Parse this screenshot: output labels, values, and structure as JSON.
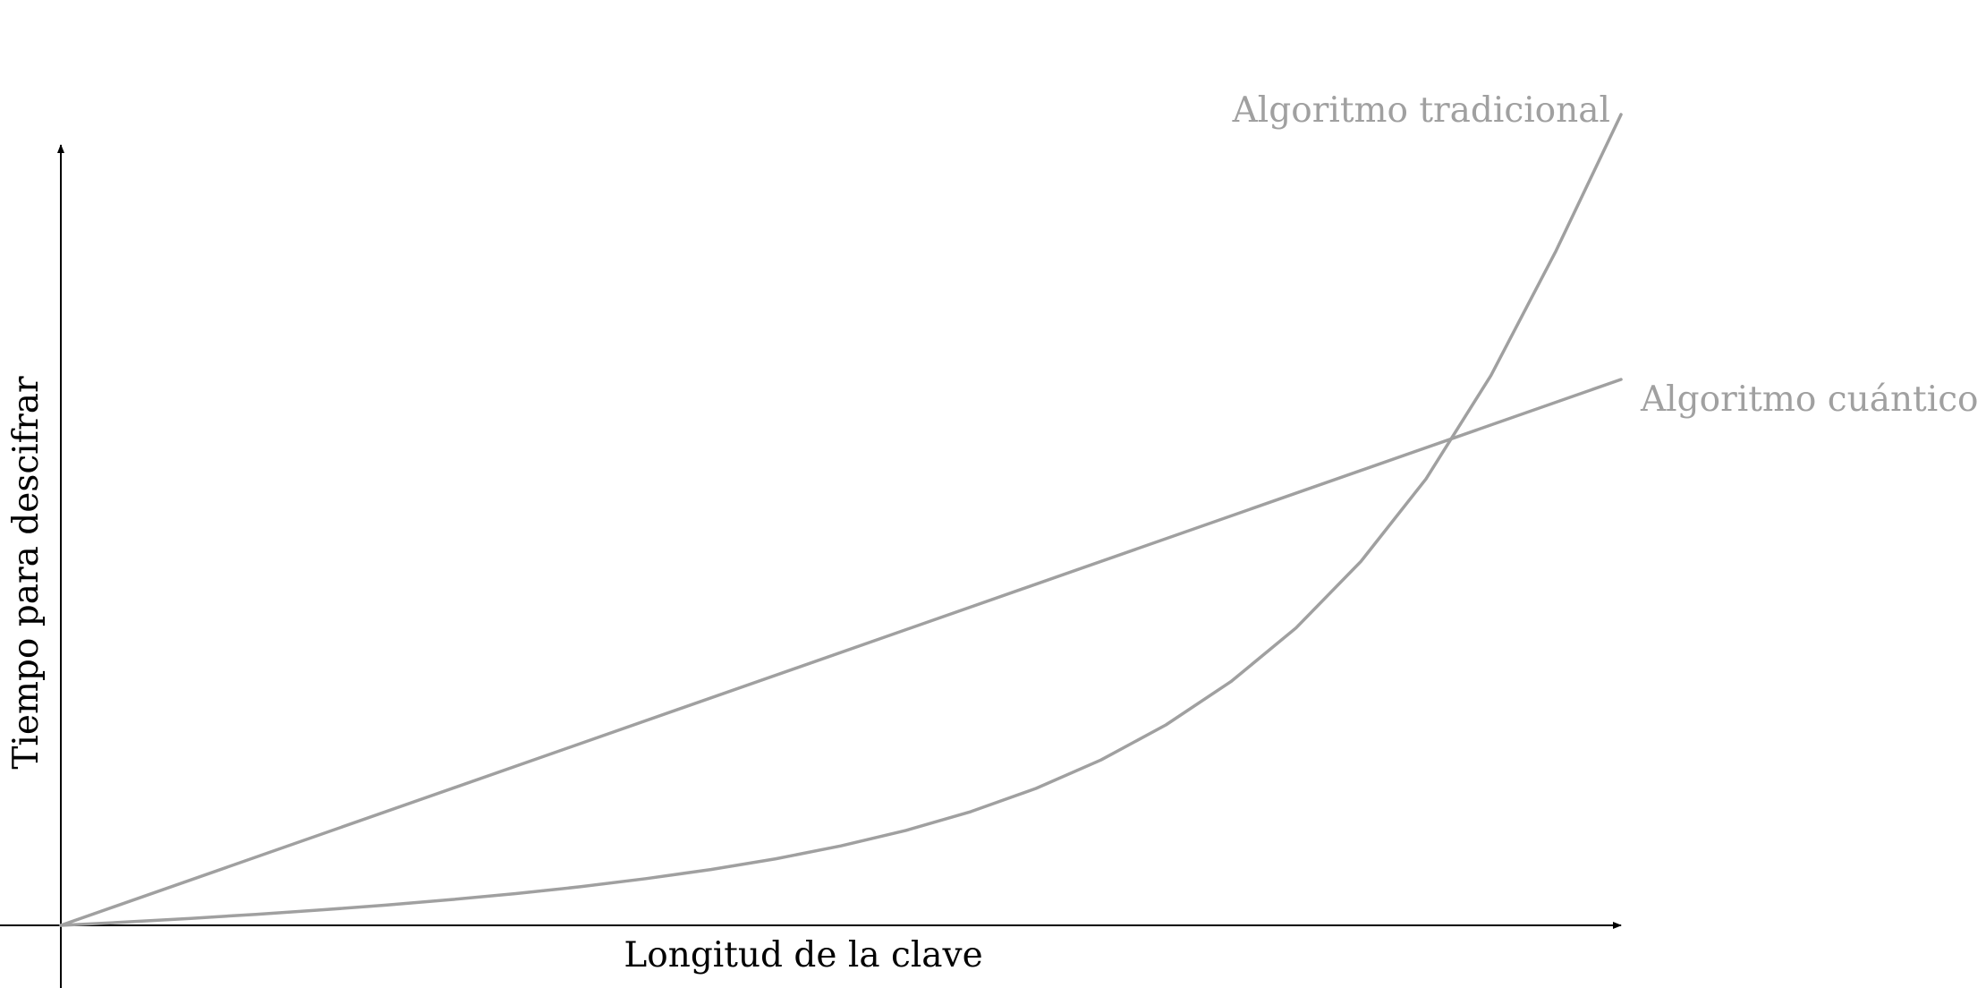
{
  "chart_data": {
    "type": "line",
    "xlabel": "Longitud de la clave",
    "ylabel": "Tiempo para descifrar",
    "xlim": [
      0,
      1
    ],
    "ylim": [
      0,
      1.2
    ],
    "grid": false,
    "ticks": false,
    "series_color": "#a0a0a0",
    "axis_color": "#000000",
    "series": [
      {
        "name": "Algoritmo cuántico",
        "x": [
          0,
          1
        ],
        "y": [
          0,
          0.8
        ]
      },
      {
        "name": "Algoritmo tradicional",
        "x": [
          0,
          0.04167,
          0.08333,
          0.125,
          0.16667,
          0.20833,
          0.25,
          0.29167,
          0.33333,
          0.375,
          0.41667,
          0.45833,
          0.5,
          0.54167,
          0.58333,
          0.625,
          0.66667,
          0.70833,
          0.75,
          0.79167,
          0.83333,
          0.875,
          0.91667,
          0.95833,
          1
        ],
        "y": [
          0,
          0.0049,
          0.0102,
          0.0161,
          0.0226,
          0.0297,
          0.0376,
          0.0465,
          0.0567,
          0.0685,
          0.0819,
          0.0976,
          0.1165,
          0.1392,
          0.1667,
          0.2007,
          0.2424,
          0.2938,
          0.3573,
          0.4358,
          0.5334,
          0.6541,
          0.806,
          0.9883,
          1.1882
        ]
      }
    ]
  }
}
